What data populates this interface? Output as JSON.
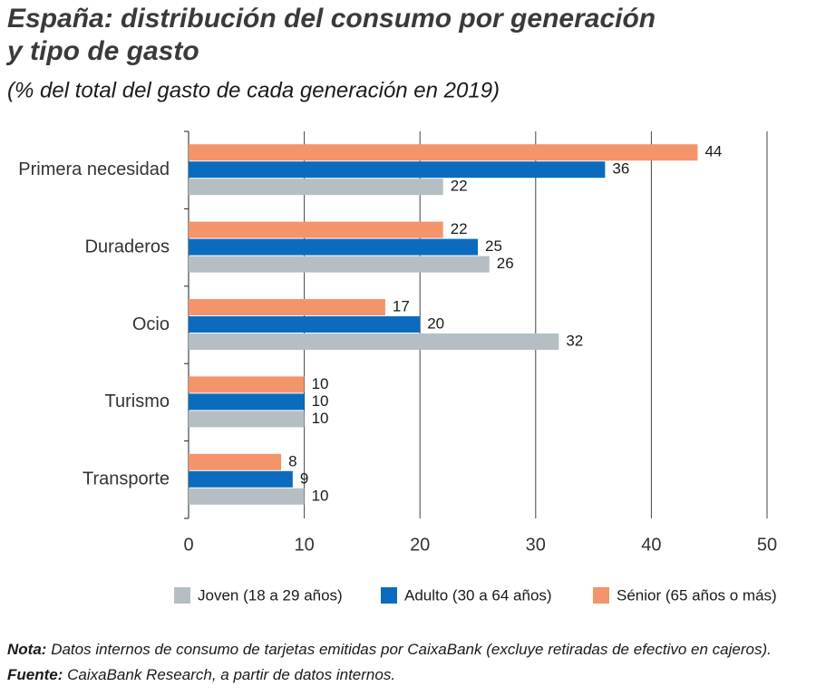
{
  "chart_data": {
    "type": "hbar",
    "title": [
      "España: distribución del consumo por generación",
      "y tipo de gasto"
    ],
    "subtitle": "(% del total del gasto de cada generación en 2019)",
    "categories": [
      "Primera necesidad",
      "Duraderos",
      "Ocio",
      "Turismo",
      "Transporte"
    ],
    "series": [
      {
        "name": "Joven (18 a 29 años)",
        "color": "#b4bec3",
        "values": [
          22,
          26,
          32,
          10,
          10
        ]
      },
      {
        "name": "Adulto (30 a 64 años)",
        "color": "#0b6cbf",
        "values": [
          36,
          25,
          20,
          10,
          9
        ]
      },
      {
        "name": "Sénior (65 años o más)",
        "color": "#f4946a",
        "values": [
          44,
          22,
          17,
          10,
          8
        ]
      }
    ],
    "xlim": [
      0,
      50
    ],
    "xticks": [
      0,
      10,
      20,
      30,
      40,
      50
    ],
    "grid": true,
    "legend": "bottom",
    "notes": [
      {
        "label": "Nota:",
        "text": "Datos internos de consumo de tarjetas emitidas por CaixaBank (excluye retiradas de efectivo en cajeros)."
      },
      {
        "label": "Fuente:",
        "text": "CaixaBank Research, a partir de datos internos."
      }
    ]
  }
}
